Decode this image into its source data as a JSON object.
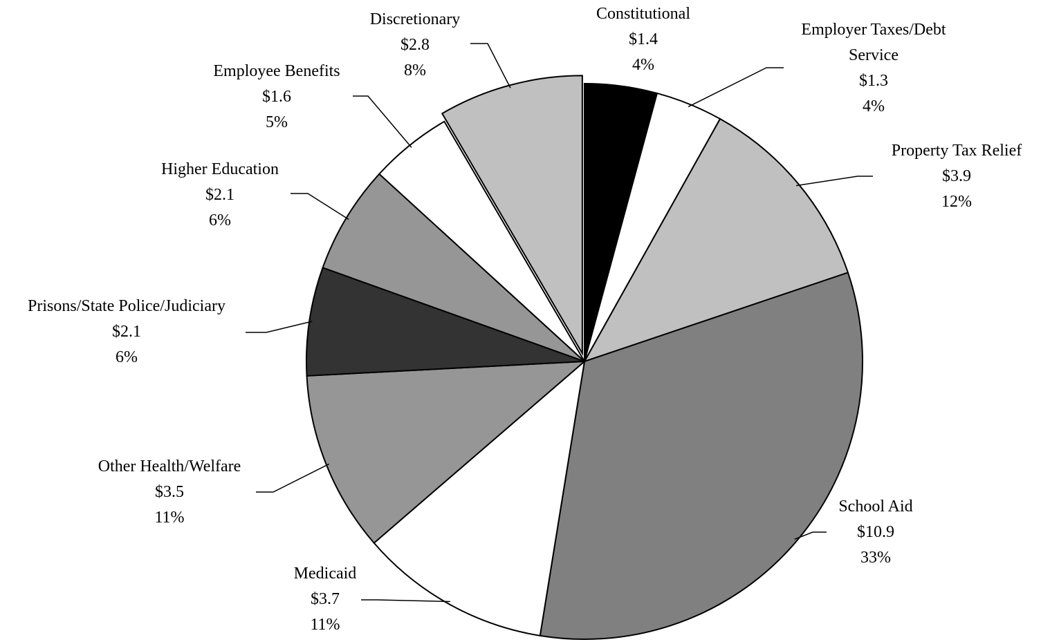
{
  "chart_data": {
    "type": "pie",
    "categories": [
      "Constitutional",
      "Employer Taxes/Debt Service",
      "Property Tax Relief",
      "School Aid",
      "Medicaid",
      "Other Health/Welfare",
      "Prisons/State Police/Judiciary",
      "Higher Education",
      "Employee Benefits",
      "Discretionary"
    ],
    "values": [
      1.4,
      1.3,
      3.9,
      10.9,
      3.7,
      3.5,
      2.1,
      2.1,
      1.6,
      2.8
    ],
    "value_labels": [
      "$1.4",
      "$1.3",
      "$3.9",
      "$10.9",
      "$3.7",
      "$3.5",
      "$2.1",
      "$2.1",
      "$1.6",
      "$2.8"
    ],
    "percentages": [
      4,
      4,
      12,
      33,
      11,
      11,
      6,
      6,
      5,
      8
    ],
    "percentage_labels": [
      "4%",
      "4%",
      "12%",
      "33%",
      "11%",
      "11%",
      "6%",
      "6%",
      "5%",
      "8%"
    ],
    "colors": [
      "#000000",
      "#ffffff",
      "#c0c0c0",
      "#808080",
      "#ffffff",
      "#969696",
      "#333333",
      "#969696",
      "#ffffff",
      "#c0c0c0"
    ],
    "exploded": [
      "Discretionary"
    ]
  }
}
